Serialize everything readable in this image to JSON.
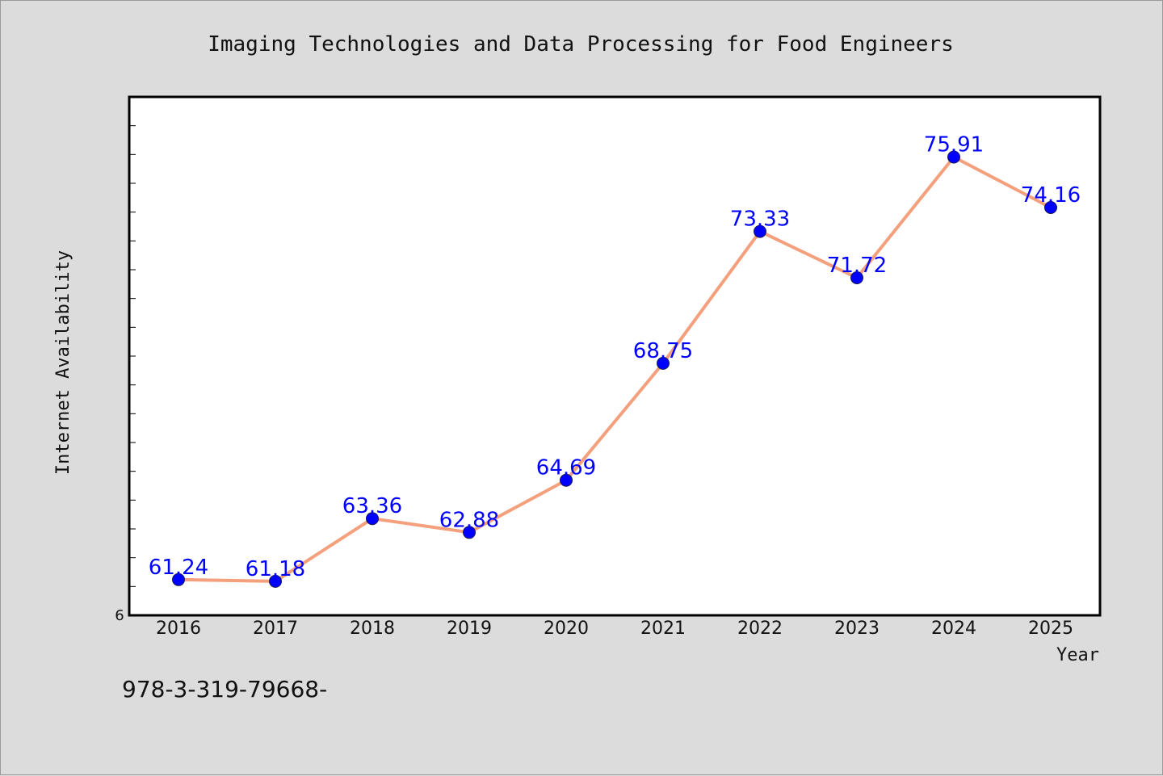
{
  "chart_data": {
    "type": "line",
    "title": "Imaging Technologies and Data Processing for Food Engineers",
    "xlabel": "Year",
    "ylabel": "Internet Availability",
    "categories": [
      "2016",
      "2017",
      "2018",
      "2019",
      "2020",
      "2021",
      "2022",
      "2023",
      "2024",
      "2025"
    ],
    "values": [
      61.24,
      61.18,
      63.36,
      62.88,
      64.69,
      68.75,
      73.33,
      71.72,
      75.91,
      74.16
    ],
    "data_labels": [
      "61.24",
      "61.18",
      "63.36",
      "62.88",
      "64.69",
      "68.75",
      "73.33",
      "71.72",
      "75.91",
      "74.16"
    ],
    "ylim": [
      60,
      78
    ],
    "y_tick_labels_visible": [
      "6"
    ],
    "grid": false,
    "line_color": "#f4a07c",
    "marker_color": "#0000ff",
    "label_color": "#0000ff",
    "plot_background": "#ffffff",
    "page_background": "#dcdcdc"
  },
  "footer": {
    "text": "978-3-319-79668-"
  }
}
